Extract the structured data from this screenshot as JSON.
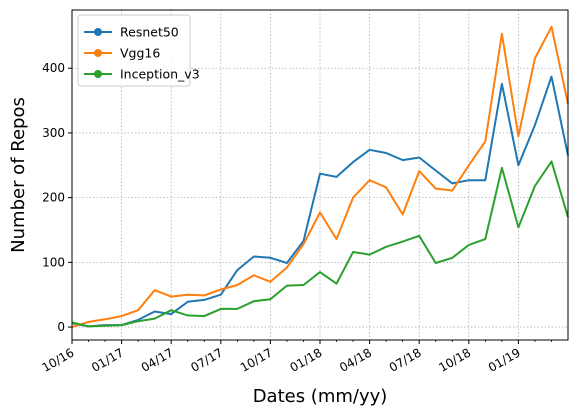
{
  "chart_data": {
    "type": "line",
    "xlabel": "Dates (mm/yy)",
    "ylabel": "Number of Repos",
    "xlim": [
      "2016-10",
      "2019-04"
    ],
    "ylim": [
      -20,
      490
    ],
    "yticks": [
      0,
      100,
      200,
      300,
      400
    ],
    "xticks": [
      {
        "date": "2016-10",
        "label": "10/16"
      },
      {
        "date": "2017-01",
        "label": "01/17"
      },
      {
        "date": "2017-04",
        "label": "04/17"
      },
      {
        "date": "2017-07",
        "label": "07/17"
      },
      {
        "date": "2017-10",
        "label": "10/17"
      },
      {
        "date": "2018-01",
        "label": "01/18"
      },
      {
        "date": "2018-04",
        "label": "04/18"
      },
      {
        "date": "2018-07",
        "label": "07/18"
      },
      {
        "date": "2018-10",
        "label": "10/18"
      },
      {
        "date": "2019-01",
        "label": "01/19"
      }
    ],
    "grid": true,
    "legend": "upper-left",
    "x": [
      "2016-10",
      "2016-11",
      "2016-12",
      "2017-01",
      "2017-02",
      "2017-03",
      "2017-04",
      "2017-05",
      "2017-06",
      "2017-07",
      "2017-08",
      "2017-09",
      "2017-10",
      "2017-11",
      "2017-12",
      "2018-01",
      "2018-02",
      "2018-03",
      "2018-04",
      "2018-05",
      "2018-06",
      "2018-07",
      "2018-08",
      "2018-09",
      "2018-10",
      "2018-11",
      "2018-12",
      "2019-01",
      "2019-02",
      "2019-03",
      "2019-04"
    ],
    "series": [
      {
        "name": "Resnet50",
        "color": "#1f77b4",
        "values": [
          6,
          1,
          3,
          3,
          11,
          24,
          20,
          39,
          42,
          50,
          88,
          109,
          107,
          99,
          133,
          237,
          232,
          255,
          274,
          269,
          258,
          262,
          242,
          222,
          227,
          227,
          376,
          250,
          312,
          387,
          265
        ]
      },
      {
        "name": "Vgg16",
        "color": "#ff7f0e",
        "values": [
          0,
          8,
          12,
          17,
          26,
          57,
          47,
          50,
          49,
          58,
          65,
          80,
          70,
          92,
          128,
          177,
          136,
          200,
          227,
          216,
          174,
          241,
          214,
          211,
          250,
          287,
          453,
          295,
          415,
          464,
          345
        ]
      },
      {
        "name": "Inception_v3",
        "color": "#2ca02c",
        "values": [
          7,
          1,
          2,
          3,
          9,
          13,
          26,
          18,
          17,
          28,
          28,
          40,
          43,
          64,
          65,
          85,
          67,
          116,
          112,
          124,
          132,
          141,
          99,
          107,
          127,
          136,
          246,
          154,
          218,
          256,
          170
        ]
      }
    ]
  }
}
